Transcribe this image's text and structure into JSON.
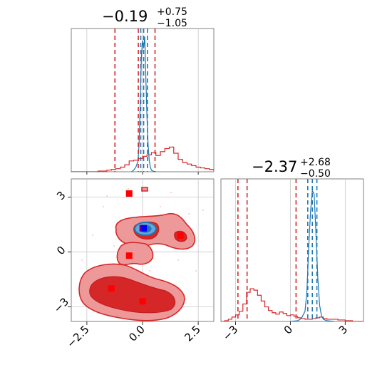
{
  "chart_data": {
    "type": "corner",
    "colors": {
      "prior": "#d62728",
      "posterior": "#1f77b4",
      "marker": "#ff0000",
      "truth": "#0000ff",
      "grid": "#c8c8c8"
    },
    "grid": true,
    "parameters": [
      {
        "title_value": "−0.19",
        "title_plus": "+0.75",
        "title_minus": "−1.05",
        "range": [
          -3.2,
          3.2
        ],
        "ticks": [
          -2.5,
          0.0,
          2.5
        ],
        "tick_labels": [
          "−2.5",
          "0.0",
          "2.5"
        ],
        "prior_quantiles": [
          -1.24,
          -0.19,
          0.56
        ],
        "posterior_quantiles": [
          -0.08,
          0.05,
          0.22
        ]
      },
      {
        "title_value": "−2.37",
        "title_plus": "+2.68",
        "title_minus": "−0.50",
        "range": [
          -3.8,
          4.0
        ],
        "ticks": [
          -3,
          0,
          3
        ],
        "tick_labels": [
          "−3",
          "0",
          "3"
        ],
        "prior_quantiles": [
          -2.87,
          -2.37,
          0.31
        ],
        "posterior_quantiles": [
          0.95,
          1.2,
          1.45
        ]
      }
    ],
    "hist1_prior": {
      "edges_start": -3.2,
      "bin_width": 0.2,
      "counts": [
        0,
        0,
        0,
        0,
        0,
        0,
        1,
        1,
        2,
        3,
        4,
        6,
        9,
        14,
        15,
        17,
        20,
        22,
        25,
        21,
        26,
        30,
        32,
        24,
        16,
        12,
        10,
        8,
        6,
        5,
        4,
        3,
        2,
        1,
        0,
        0,
        0,
        0,
        0,
        0,
        0,
        0
      ]
    },
    "hist1_posterior": {
      "x": [
        -0.5,
        -0.4,
        -0.3,
        -0.2,
        -0.15,
        -0.1,
        -0.05,
        0.0,
        0.05,
        0.1,
        0.15,
        0.2,
        0.25,
        0.3,
        0.35,
        0.4,
        0.5,
        0.6
      ],
      "y": [
        0,
        2,
        6,
        14,
        40,
        95,
        150,
        170,
        160,
        175,
        120,
        70,
        35,
        15,
        6,
        2,
        0.5,
        0
      ]
    },
    "hist1_ymax": 180,
    "hist2_prior": {
      "edges_start": -3.8,
      "bin_width": 0.2,
      "counts": [
        0,
        1,
        3,
        6,
        9,
        14,
        24,
        40,
        45,
        43,
        36,
        28,
        20,
        15,
        12,
        10,
        13,
        11,
        8,
        9,
        7,
        5,
        4,
        3,
        3,
        4,
        5,
        6,
        4,
        3,
        3,
        3,
        2,
        2,
        1,
        1,
        0,
        0,
        0
      ]
    },
    "hist2_posterior": {
      "x": [
        0.0,
        0.4,
        0.6,
        0.8,
        0.9,
        1.0,
        1.1,
        1.2,
        1.3,
        1.4,
        1.5,
        1.6,
        1.7,
        1.8,
        2.0,
        2.4
      ],
      "y": [
        0,
        1,
        4,
        14,
        40,
        100,
        150,
        180,
        175,
        120,
        60,
        22,
        8,
        3,
        1,
        0
      ]
    },
    "hist2_ymax": 190,
    "scatter_points": [
      {
        "x": -0.6,
        "y": 3.2
      },
      {
        "x": 0.0,
        "y": 1.3
      },
      {
        "x": 1.7,
        "y": 0.9
      },
      {
        "x": -0.6,
        "y": -0.2
      },
      {
        "x": -1.4,
        "y": -2.0
      },
      {
        "x": 0.0,
        "y": -2.7
      }
    ],
    "truth_point": {
      "x": 0.05,
      "y": 1.3
    }
  }
}
